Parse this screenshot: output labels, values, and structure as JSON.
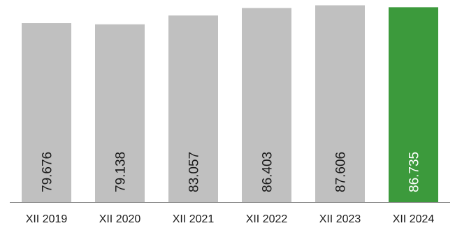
{
  "chart_data": {
    "type": "bar",
    "title": "",
    "xlabel": "",
    "ylabel": "",
    "categories": [
      "XII 2019",
      "XII 2020",
      "XII 2021",
      "XII 2022",
      "XII 2023",
      "XII 2024"
    ],
    "values": [
      79.676,
      79.138,
      83.057,
      86.403,
      87.606,
      86.735
    ],
    "value_labels": [
      "79.676",
      "79.138",
      "83.057",
      "86.403",
      "87.606",
      "86.735"
    ],
    "ylim": [
      0,
      88.4
    ],
    "grid": false,
    "legend": "none",
    "colors": {
      "default_bar": "#c0c0c0",
      "highlight_bar": "#3c9a3c",
      "default_label": "#1a1a1a",
      "highlight_label": "#ffffff",
      "axis_line": "#8c8c8c",
      "tick_label": "#1a1a1a"
    },
    "highlight_index": 5
  }
}
